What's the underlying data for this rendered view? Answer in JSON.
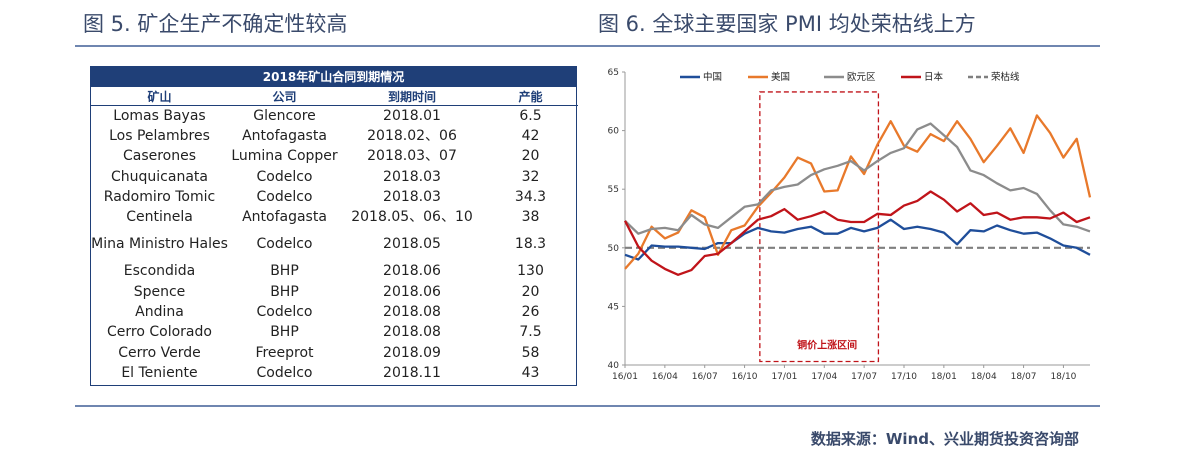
{
  "left_title": "图 5. 矿企生产不确定性较高",
  "right_title": "图 6. 全球主要国家 PMI 均处荣枯线上方",
  "table": {
    "title": "2018年矿山合同到期情况",
    "headers": [
      "矿山",
      "公司",
      "到期时间",
      "产能"
    ],
    "rows": [
      [
        "Lomas Bayas",
        "Glencore",
        "2018.01",
        "6.5"
      ],
      [
        "Los Pelambres",
        "Antofagasta",
        "2018.02、06",
        "42"
      ],
      [
        "Caserones",
        "Lumina Copper",
        "2018.03、07",
        "20"
      ],
      [
        "Chuquicanata",
        "Codelco",
        "2018.03",
        "32"
      ],
      [
        "Radomiro Tomic",
        "Codelco",
        "2018.03",
        "34.3"
      ],
      [
        "Centinela",
        "Antofagasta",
        "2018.05、06、10",
        "38"
      ],
      [
        "Mina Ministro Hales",
        "Codelco",
        "2018.05",
        "18.3"
      ],
      [
        "Escondida",
        "BHP",
        "2018.06",
        "130"
      ],
      [
        "Spence",
        "BHP",
        "2018.06",
        "20"
      ],
      [
        "Andina",
        "Codelco",
        "2018.08",
        "26"
      ],
      [
        "Cerro Colorado",
        "BHP",
        "2018.08",
        "7.5"
      ],
      [
        "Cerro Verde",
        "Freeprot",
        "2018.09",
        "58"
      ],
      [
        "El Teniente",
        "Codelco",
        "2018.11",
        "43"
      ]
    ]
  },
  "chart_data": {
    "type": "line",
    "title": "全球主要国家 PMI 均处荣枯线上方",
    "ylim": [
      40,
      65
    ],
    "yticks": [
      "40",
      "45",
      "50",
      "55",
      "60",
      "65"
    ],
    "x_count": 36,
    "x_tick_labels": [
      "16/01",
      "16/04",
      "16/07",
      "16/10",
      "17/01",
      "17/04",
      "17/07",
      "17/10",
      "18/01",
      "18/04",
      "18/07",
      "18/10"
    ],
    "annotation": "铜价上涨区间",
    "highlight_range_index": [
      10,
      19
    ],
    "legend": [
      "中国",
      "美国",
      "欧元区",
      "日本",
      "荣枯线"
    ],
    "threshold": {
      "name": "荣枯线",
      "value": 50,
      "color": "#7f7f7f"
    },
    "series": [
      {
        "name": "中国",
        "color": "#1f4e9a",
        "values": [
          49.4,
          49.0,
          50.2,
          50.1,
          50.1,
          50.0,
          49.9,
          50.4,
          50.4,
          51.2,
          51.7,
          51.4,
          51.3,
          51.6,
          51.8,
          51.2,
          51.2,
          51.7,
          51.4,
          51.7,
          52.4,
          51.6,
          51.8,
          51.6,
          51.3,
          50.3,
          51.5,
          51.4,
          51.9,
          51.5,
          51.2,
          51.3,
          50.8,
          50.2,
          50.0,
          49.4
        ]
      },
      {
        "name": "美国",
        "color": "#e8792b",
        "values": [
          48.2,
          49.5,
          51.8,
          50.8,
          51.3,
          53.2,
          52.6,
          49.4,
          51.5,
          51.9,
          53.5,
          54.7,
          56.0,
          57.7,
          57.2,
          54.8,
          54.9,
          57.8,
          56.3,
          58.8,
          60.8,
          58.7,
          58.2,
          59.7,
          59.1,
          60.8,
          59.3,
          57.3,
          58.7,
          60.2,
          58.1,
          61.3,
          59.8,
          57.7,
          59.3,
          54.3
        ]
      },
      {
        "name": "欧元区",
        "color": "#8c8c8c",
        "values": [
          52.3,
          51.2,
          51.6,
          51.7,
          51.5,
          52.8,
          52.0,
          51.7,
          52.6,
          53.5,
          53.7,
          54.9,
          55.2,
          55.4,
          56.2,
          56.7,
          57.0,
          57.4,
          56.6,
          57.4,
          58.1,
          58.5,
          60.1,
          60.6,
          59.6,
          58.6,
          56.6,
          56.2,
          55.5,
          54.9,
          55.1,
          54.6,
          53.2,
          52.0,
          51.8,
          51.4
        ]
      },
      {
        "name": "日本",
        "color": "#c0141a",
        "values": [
          52.3,
          50.1,
          48.9,
          48.2,
          47.7,
          48.1,
          49.3,
          49.5,
          50.4,
          51.4,
          52.4,
          52.7,
          53.3,
          52.4,
          52.7,
          53.1,
          52.4,
          52.2,
          52.2,
          52.9,
          52.8,
          53.6,
          54.0,
          54.8,
          54.1,
          53.1,
          53.8,
          52.8,
          53.0,
          52.4,
          52.6,
          52.6,
          52.5,
          53.0,
          52.2,
          52.6
        ]
      }
    ]
  },
  "source_text": "数据来源：Wind、兴业期货投资咨询部"
}
